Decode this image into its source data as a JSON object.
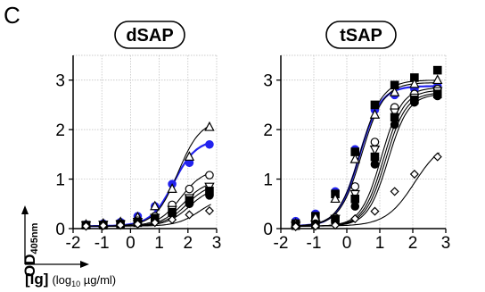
{
  "panel_label": "C",
  "y_axis": {
    "label_main": "OD",
    "label_sub": "405nm"
  },
  "x_axis": {
    "label_main": "[Ig]",
    "label_unit_pre": "(log",
    "label_unit_sub": "10",
    "label_unit_post": " µg/ml)"
  },
  "chart_data": [
    {
      "type": "scatter",
      "title": "dSAP",
      "xlim": [
        -2,
        3
      ],
      "ylim": [
        0,
        3.5
      ],
      "xticks": [
        -2,
        -1,
        0,
        1,
        2,
        3
      ],
      "xtick_labels": [
        "-2",
        "-1",
        "0",
        "1",
        "2",
        "3"
      ],
      "yticks": [
        0,
        1,
        2,
        3
      ],
      "ytick_labels": [
        "0",
        "1",
        "2",
        "3"
      ],
      "grid": true,
      "x": [
        -1.55,
        -0.95,
        -0.35,
        0.25,
        0.85,
        1.45,
        2.05,
        2.75
      ],
      "series": [
        {
          "marker": "circle-filled",
          "color": "#2222ee",
          "values": [
            0.08,
            0.1,
            0.13,
            0.25,
            0.45,
            0.9,
            1.33,
            1.7
          ],
          "fit": [
            0.05,
            1.8,
            1.5,
            1.1
          ]
        },
        {
          "marker": "triangle-open",
          "color": "#000000",
          "values": [
            0.08,
            0.1,
            0.13,
            0.23,
            0.45,
            0.8,
            1.45,
            2.05
          ],
          "fit": [
            0.05,
            2.2,
            1.65,
            1.1
          ]
        },
        {
          "marker": "circle-open",
          "color": "#000000",
          "values": [
            0.07,
            0.08,
            0.1,
            0.16,
            0.25,
            0.48,
            0.8,
            1.08
          ],
          "fit": [
            0.05,
            1.2,
            1.75,
            1.1
          ]
        },
        {
          "marker": "triangle-down-open",
          "color": "#000000",
          "values": [
            0.07,
            0.08,
            0.09,
            0.14,
            0.22,
            0.38,
            0.62,
            0.85
          ],
          "fit": [
            0.05,
            0.98,
            1.85,
            1.1
          ]
        },
        {
          "marker": "square-filled",
          "color": "#000000",
          "values": [
            0.07,
            0.07,
            0.09,
            0.12,
            0.2,
            0.33,
            0.57,
            0.76
          ],
          "fit": [
            0.05,
            0.92,
            1.95,
            1.1
          ]
        },
        {
          "marker": "circle-filled",
          "color": "#000000",
          "values": [
            0.06,
            0.07,
            0.08,
            0.11,
            0.18,
            0.3,
            0.5,
            0.67
          ],
          "fit": [
            0.05,
            0.85,
            2.05,
            1.1
          ]
        },
        {
          "marker": "diamond-open",
          "color": "#000000",
          "values": [
            0.05,
            0.06,
            0.07,
            0.09,
            0.12,
            0.18,
            0.28,
            0.36
          ],
          "fit": [
            0.05,
            0.65,
            2.4,
            1.1
          ]
        }
      ]
    },
    {
      "type": "scatter",
      "title": "tSAP",
      "xlim": [
        -2,
        3
      ],
      "ylim": [
        0,
        3.5
      ],
      "xticks": [
        -2,
        -1,
        0,
        1,
        2,
        3
      ],
      "xtick_labels": [
        "-2",
        "-1",
        "0",
        "1",
        "2",
        "3"
      ],
      "yticks": [
        0,
        1,
        2,
        3
      ],
      "ytick_labels": [
        "0",
        "1",
        "2",
        "3"
      ],
      "grid": true,
      "x": [
        -1.55,
        -0.95,
        -0.35,
        0.25,
        0.85,
        1.45,
        2.05,
        2.75
      ],
      "series": [
        {
          "marker": "circle-filled",
          "color": "#2222ee",
          "values": [
            0.15,
            0.3,
            0.75,
            1.6,
            2.4,
            2.7,
            2.82,
            2.88
          ],
          "fit": [
            0.05,
            2.88,
            0.38,
            1.35
          ]
        },
        {
          "marker": "square-filled",
          "color": "#000000",
          "values": [
            0.1,
            0.25,
            0.7,
            1.55,
            2.5,
            2.9,
            3.05,
            3.2
          ],
          "fit": [
            0.05,
            3.0,
            0.4,
            1.3
          ]
        },
        {
          "marker": "triangle-open",
          "color": "#000000",
          "values": [
            0.1,
            0.22,
            0.6,
            1.4,
            2.3,
            2.75,
            2.92,
            3.0
          ],
          "fit": [
            0.05,
            2.95,
            0.45,
            1.3
          ]
        },
        {
          "marker": "circle-open",
          "color": "#000000",
          "values": [
            0.07,
            0.1,
            0.22,
            0.85,
            1.75,
            2.45,
            2.72,
            2.82
          ],
          "fit": [
            0.05,
            2.85,
            1.05,
            1.4
          ]
        },
        {
          "marker": "triangle-down-open",
          "color": "#000000",
          "values": [
            0.06,
            0.09,
            0.2,
            0.7,
            1.6,
            2.35,
            2.65,
            2.78
          ],
          "fit": [
            0.05,
            2.8,
            1.12,
            1.4
          ]
        },
        {
          "marker": "square-filled",
          "color": "#000000",
          "values": [
            0.06,
            0.08,
            0.18,
            0.6,
            1.45,
            2.25,
            2.6,
            2.72
          ],
          "fit": [
            0.05,
            2.75,
            1.18,
            1.4
          ]
        },
        {
          "marker": "circle-filled",
          "color": "#000000",
          "values": [
            0.05,
            0.08,
            0.16,
            0.45,
            1.3,
            2.1,
            2.55,
            2.68
          ],
          "fit": [
            0.05,
            2.72,
            1.25,
            1.4
          ]
        },
        {
          "marker": "diamond-open",
          "color": "#000000",
          "values": [
            0.04,
            0.05,
            0.07,
            0.2,
            0.35,
            0.75,
            1.1,
            1.45
          ],
          "fit": [
            0.05,
            1.8,
            2.05,
            1.0
          ]
        }
      ]
    }
  ]
}
